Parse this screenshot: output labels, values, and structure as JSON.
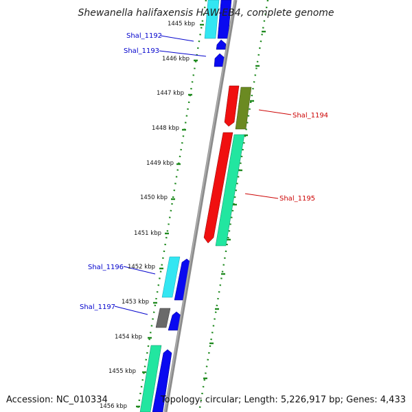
{
  "title": "Shewanella halifaxensis HAW-EB4, complete genome",
  "footer": {
    "accession": "Accession: NC_010334",
    "topology": "Topology: circular; Length: 5,226,917 bp; Genes: 4,433"
  },
  "kbp_labels": [
    "1445 kbp",
    "1446 kbp",
    "1447 kbp",
    "1448 kbp",
    "1449 kbp",
    "1450 kbp",
    "1451 kbp",
    "1452 kbp",
    "1453 kbp",
    "1454 kbp",
    "1455 kbp",
    "1456 kbp"
  ],
  "genes": [
    {
      "label": "Shal_1192",
      "color": "#0000cc"
    },
    {
      "label": "Shal_1193",
      "color": "#0000cc"
    },
    {
      "label": "Shal_1194",
      "color": "#cc0000"
    },
    {
      "label": "Shal_1195",
      "color": "#cc0000"
    },
    {
      "label": "Shal_1196",
      "color": "#0000cc"
    },
    {
      "label": "Shal_1197",
      "color": "#0000cc"
    }
  ],
  "colors": {
    "backbone": "#8c8c8c",
    "tick": "#1f8a1f",
    "cyan": "#33e6f2",
    "blue": "#0a0af0",
    "red": "#f01010",
    "olive": "#6b8a22",
    "mint": "#22e6a0",
    "gray": "#6a6a6a"
  }
}
